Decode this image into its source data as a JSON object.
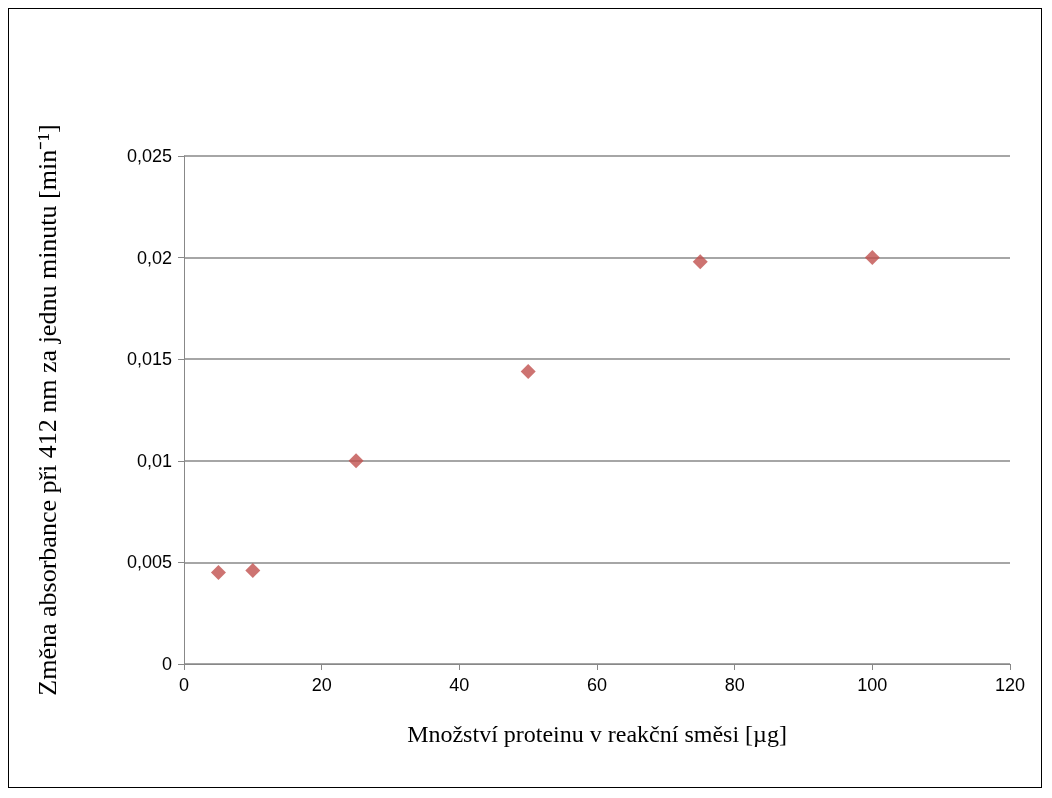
{
  "chart_data": {
    "type": "scatter",
    "xlabel": "Množství proteinu v reakční směsi [µg]",
    "ylabel": "Změna absorbance při 412 nm za jednu minutu [min⁻¹]",
    "x": [
      5,
      10,
      25,
      50,
      75,
      100
    ],
    "series": [
      {
        "color": "#c0504d",
        "values": [
          0.0045,
          0.0046,
          0.01,
          0.0144,
          0.0198,
          0.02
        ]
      }
    ],
    "xlim": [
      0,
      120
    ],
    "xticks": [
      0,
      20,
      40,
      60,
      80,
      100,
      120
    ],
    "ylim": [
      0,
      0.025
    ],
    "yticks": [
      {
        "value": 0,
        "label": "0"
      },
      {
        "value": 0.005,
        "label": "0,005"
      },
      {
        "value": 0.01,
        "label": "0,01"
      },
      {
        "value": 0.015,
        "label": "0,015"
      },
      {
        "value": 0.02,
        "label": "0,02"
      },
      {
        "value": 0.025,
        "label": "0,025"
      }
    ],
    "grid": "y",
    "marker": "diamond"
  }
}
